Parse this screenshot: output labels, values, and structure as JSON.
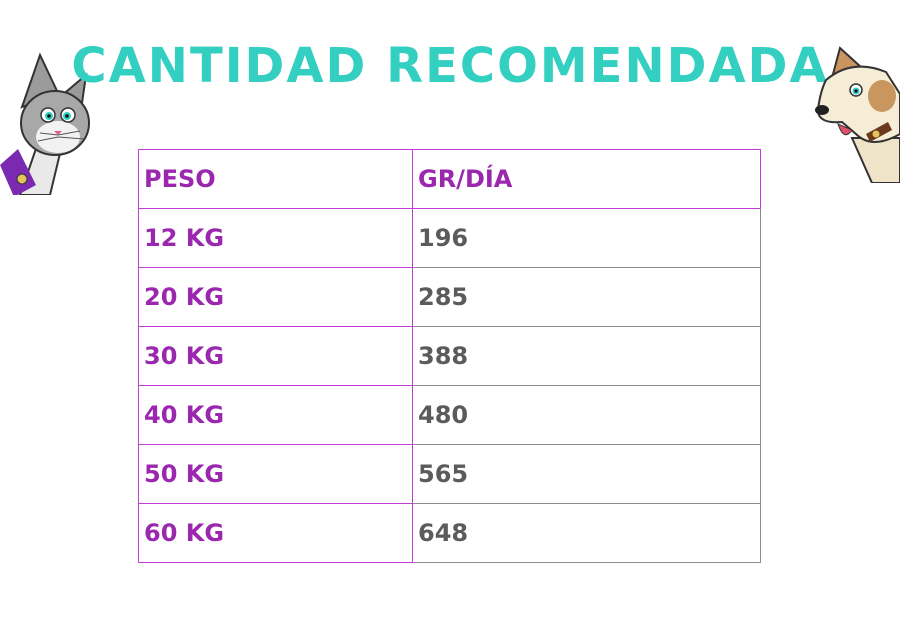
{
  "page": {
    "title": "CANTIDAD RECOMENDADA"
  },
  "colors": {
    "title": "#33cfc0",
    "label": "#9b27af",
    "value": "#5b5b5b",
    "border": "#c23ed6"
  },
  "table": {
    "headers": [
      "PESO",
      "GR/DÍA"
    ],
    "rows": [
      [
        "12 KG",
        "196"
      ],
      [
        "20 KG",
        "285"
      ],
      [
        "30 KG",
        "388"
      ],
      [
        "40 KG",
        "480"
      ],
      [
        "50 KG",
        "565"
      ],
      [
        "60 KG",
        "648"
      ]
    ]
  },
  "illustrations": [
    "cat-illustration",
    "dog-illustration"
  ]
}
